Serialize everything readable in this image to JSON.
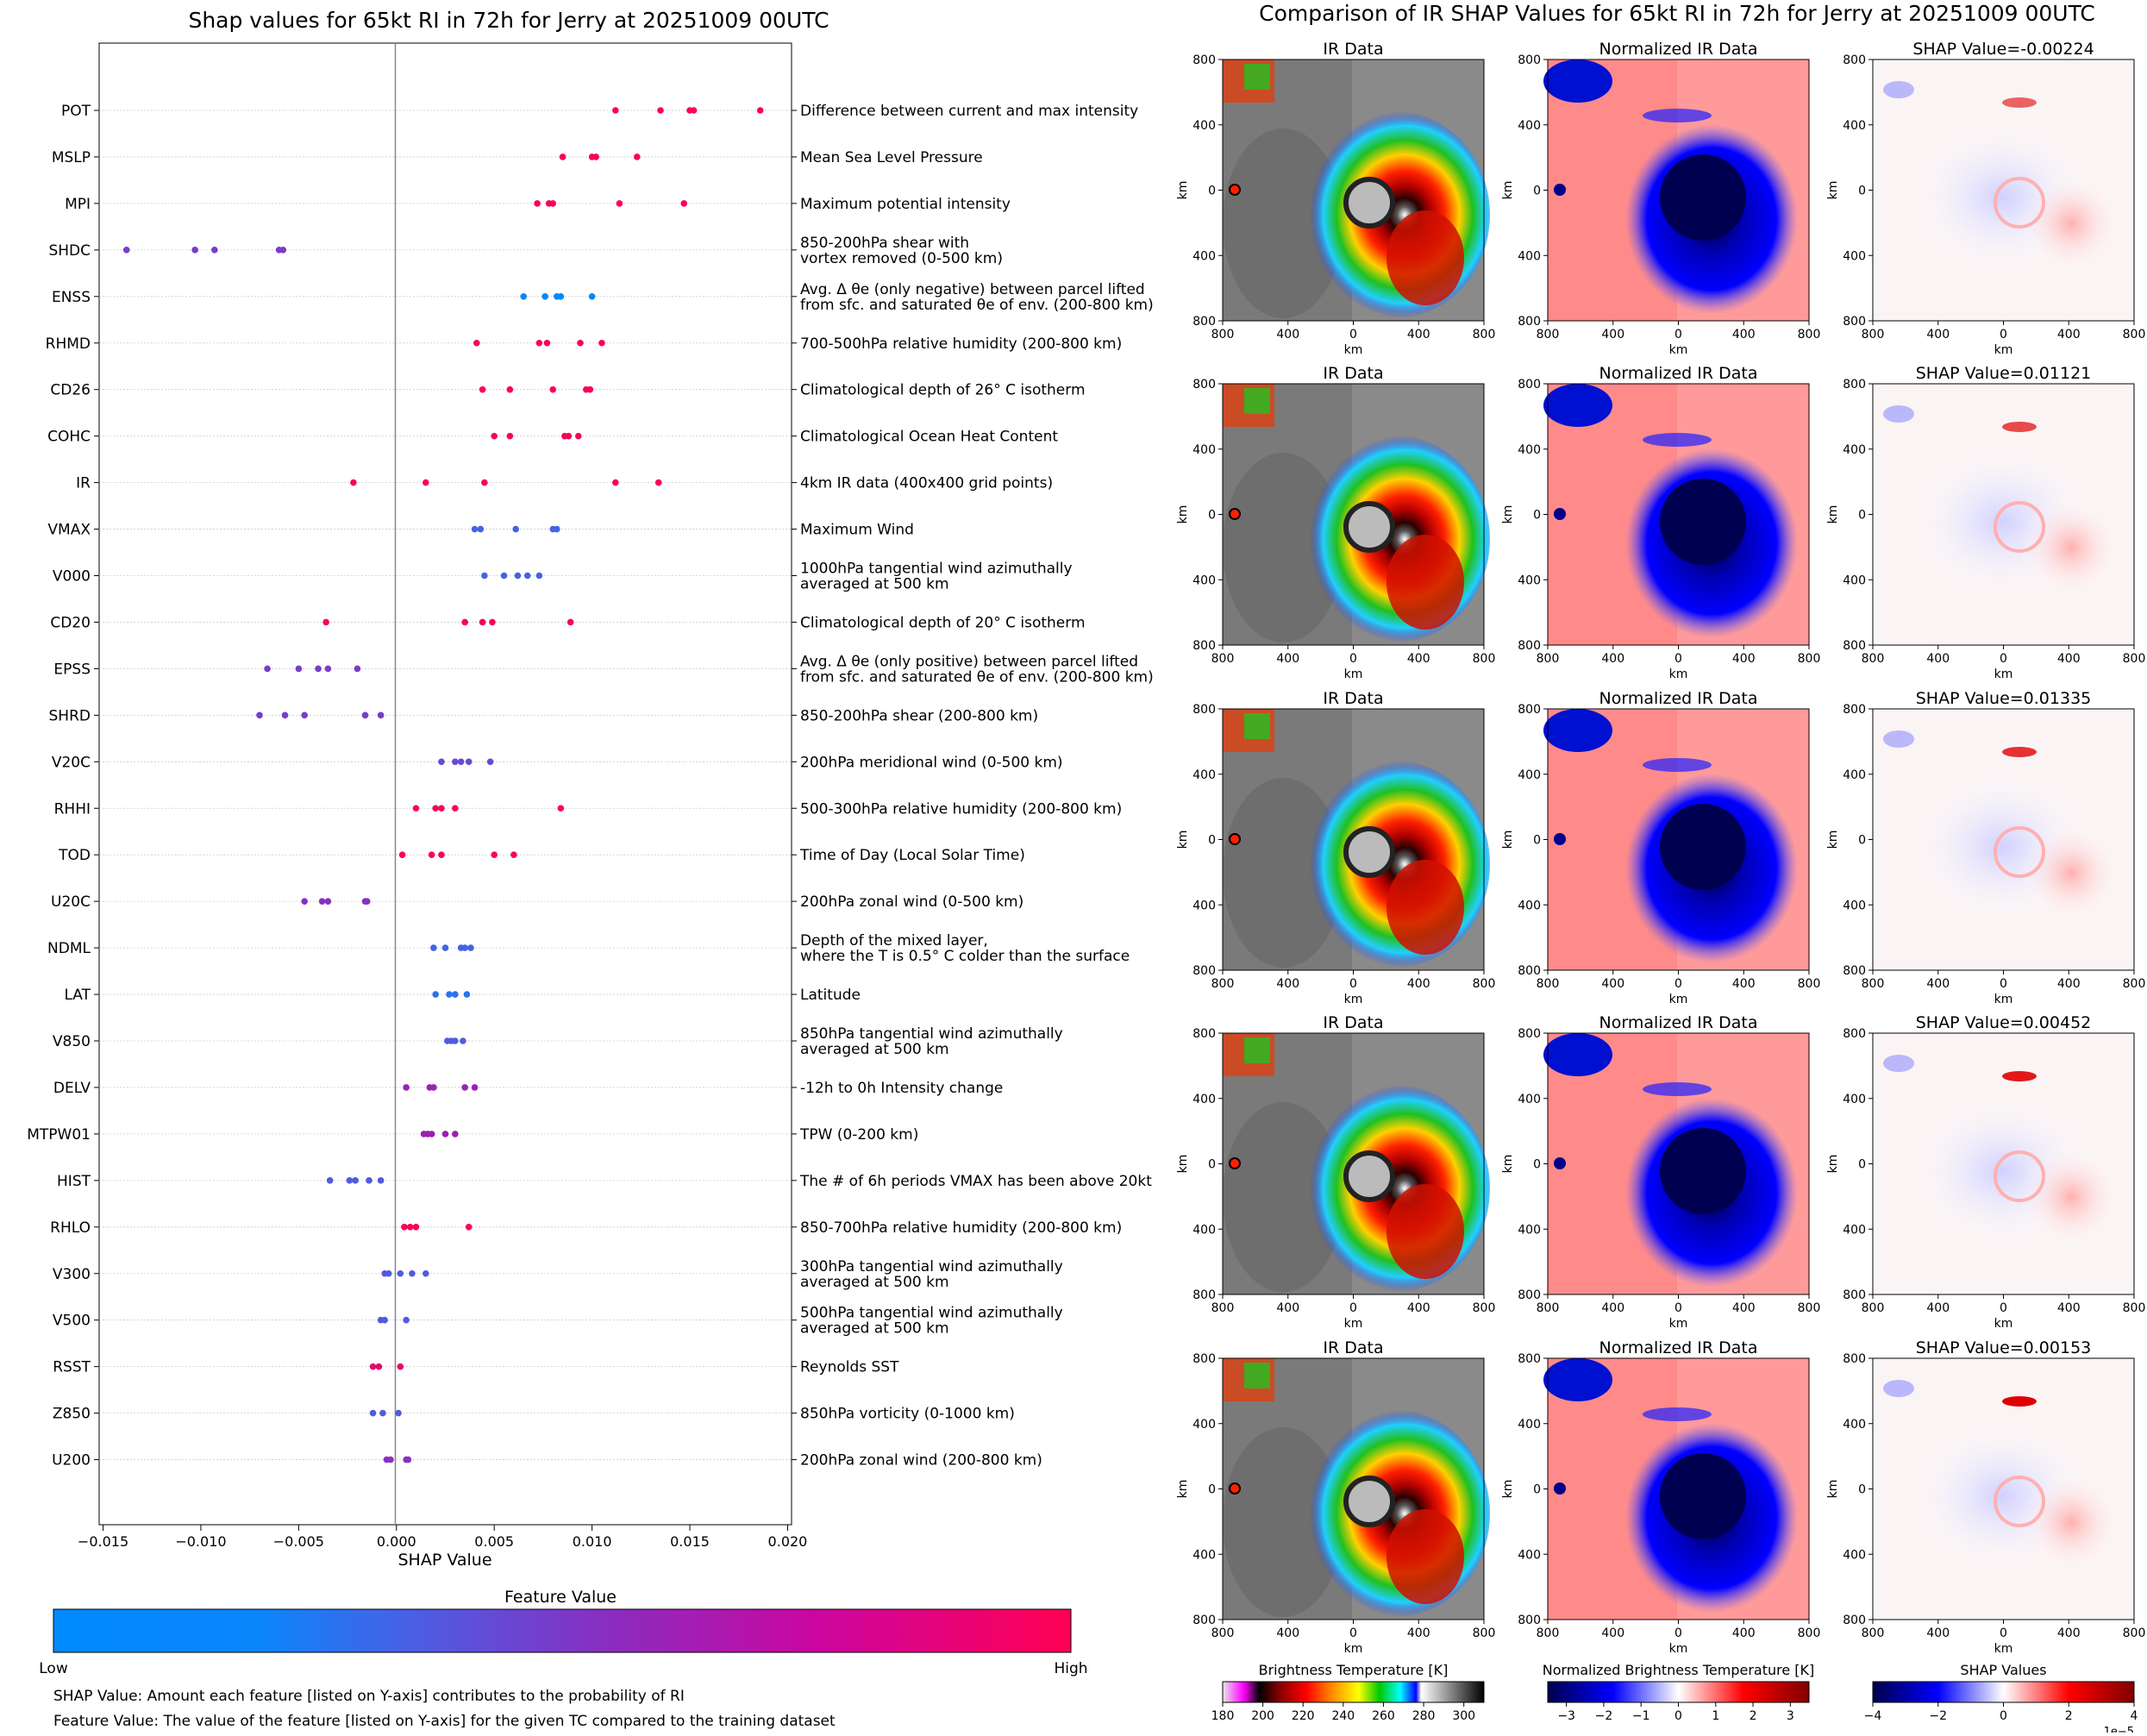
{
  "left": {
    "title": "Shap values for 65kt RI in 72h for Jerry at 20251009 00UTC",
    "xlabel": "SHAP Value",
    "colorbar": {
      "title": "Feature Value",
      "low": "Low",
      "high": "High",
      "colors": [
        "#008afd",
        "#5a56dc",
        "#a21bb0",
        "#ff0052"
      ]
    },
    "notes": [
      "SHAP Value: Amount each feature [listed on Y-axis] contributes to the probability of RI",
      "Feature Value: The value of the feature [listed on Y-axis] for the given TC compared to the training dataset"
    ]
  },
  "right": {
    "title": "Comparison of IR SHAP Values for 65kt RI in 72h for Jerry at 20251009 00UTC",
    "col_titles": [
      "IR Data",
      "Normalized IR Data"
    ],
    "shap_titles": [
      "SHAP Value=-0.00224",
      "SHAP Value=0.01121",
      "SHAP Value=0.01335",
      "SHAP Value=0.00452",
      "SHAP Value=0.00153"
    ],
    "axis_ticks": [
      "800",
      "400",
      "0",
      "400",
      "800"
    ],
    "axis_unit": "km",
    "colorbars": [
      {
        "title": "Brightness Temperature [K]",
        "ticks": [
          "180",
          "200",
          "220",
          "240",
          "260",
          "280",
          "300"
        ],
        "range": [
          180,
          310
        ]
      },
      {
        "title": "Normalized Brightness Temperature [K]",
        "ticks": [
          "−3",
          "−2",
          "−1",
          "0",
          "1",
          "2",
          "3"
        ],
        "range": [
          -3.5,
          3.5
        ]
      },
      {
        "title": "SHAP Values",
        "ticks": [
          "−4",
          "−2",
          "0",
          "2",
          "4"
        ],
        "range": [
          -4,
          4
        ],
        "offset": "1e−5"
      }
    ]
  },
  "chart_data": {
    "type": "scatter",
    "title": "Shap values for 65kt RI in 72h for Jerry at 20251009 00UTC",
    "xlabel": "SHAP Value",
    "xlim": [
      -0.0152,
      0.0202
    ],
    "xticks": [
      -0.015,
      -0.01,
      -0.005,
      0.0,
      0.005,
      0.01,
      0.015,
      0.02
    ],
    "xtick_labels": [
      "−0.015",
      "−0.010",
      "−0.005",
      "0.000",
      "0.005",
      "0.010",
      "0.015",
      "0.020"
    ],
    "grid": false,
    "features": [
      {
        "name": "POT",
        "desc": [
          "Difference between current and max intensity"
        ],
        "fv": 1.0,
        "values": [
          0.0112,
          0.0135,
          0.015,
          0.0152,
          0.0186
        ]
      },
      {
        "name": "MSLP",
        "desc": [
          "Mean Sea Level Pressure"
        ],
        "fv": 0.98,
        "values": [
          0.0085,
          0.01,
          0.0102,
          0.0123
        ]
      },
      {
        "name": "MPI",
        "desc": [
          "Maximum potential intensity"
        ],
        "fv": 0.98,
        "values": [
          0.0072,
          0.0078,
          0.008,
          0.0114,
          0.0147
        ]
      },
      {
        "name": "SHDC",
        "desc": [
          "850-200hPa shear with",
          "vortex removed (0-500 km)"
        ],
        "fv": 0.48,
        "values": [
          -0.0138,
          -0.0103,
          -0.0093,
          -0.006,
          -0.0058
        ]
      },
      {
        "name": "ENSS",
        "desc": [
          "Avg. Δ θe (only negative) between parcel lifted",
          "from sfc. and saturated θe of env. (200-800 km)"
        ],
        "fv": 0.02,
        "values": [
          0.0065,
          0.0076,
          0.0082,
          0.0084,
          0.01
        ]
      },
      {
        "name": "RHMD",
        "desc": [
          "700-500hPa relative humidity (200-800 km)"
        ],
        "fv": 0.98,
        "values": [
          0.0041,
          0.0073,
          0.0077,
          0.0094,
          0.0105
        ]
      },
      {
        "name": "CD26",
        "desc": [
          "Climatological depth of 26° C isotherm"
        ],
        "fv": 0.98,
        "values": [
          0.0044,
          0.0058,
          0.008,
          0.0097,
          0.0099
        ]
      },
      {
        "name": "COHC",
        "desc": [
          "Climatological Ocean Heat Content"
        ],
        "fv": 0.98,
        "values": [
          0.005,
          0.0058,
          0.0086,
          0.0088,
          0.0093
        ]
      },
      {
        "name": "IR",
        "desc": [
          "4km IR data (400x400 grid points)"
        ],
        "fv": 0.98,
        "values": [
          -0.0022,
          0.0015,
          0.0045,
          0.0112,
          0.0134
        ]
      },
      {
        "name": "VMAX",
        "desc": [
          "Maximum Wind"
        ],
        "fv": 0.25,
        "values": [
          0.004,
          0.0043,
          0.0061,
          0.008,
          0.0082
        ]
      },
      {
        "name": "V000",
        "desc": [
          "1000hPa tangential wind azimuthally",
          "averaged at 500 km"
        ],
        "fv": 0.25,
        "values": [
          0.0045,
          0.0055,
          0.0062,
          0.0067,
          0.0073
        ]
      },
      {
        "name": "CD20",
        "desc": [
          "Climatological depth of 20° C isotherm"
        ],
        "fv": 0.98,
        "values": [
          -0.0036,
          0.0035,
          0.0044,
          0.0049,
          0.0089
        ]
      },
      {
        "name": "EPSS",
        "desc": [
          "Avg. Δ θe (only positive) between parcel lifted",
          "from sfc. and saturated θe of env. (200-800 km)"
        ],
        "fv": 0.48,
        "values": [
          -0.0066,
          -0.005,
          -0.004,
          -0.0035,
          -0.002
        ]
      },
      {
        "name": "SHRD",
        "desc": [
          "850-200hPa shear (200-800 km)"
        ],
        "fv": 0.48,
        "values": [
          -0.007,
          -0.0057,
          -0.0047,
          -0.0016,
          -0.0008
        ]
      },
      {
        "name": "V20C",
        "desc": [
          "200hPa meridional wind (0-500 km)"
        ],
        "fv": 0.4,
        "values": [
          0.0023,
          0.003,
          0.0033,
          0.0037,
          0.0048
        ]
      },
      {
        "name": "RHHI",
        "desc": [
          "500-300hPa relative humidity (200-800 km)"
        ],
        "fv": 0.98,
        "values": [
          0.001,
          0.002,
          0.0023,
          0.003,
          0.0084
        ]
      },
      {
        "name": "TOD",
        "desc": [
          "Time of Day (Local Solar Time)"
        ],
        "fv": 0.98,
        "values": [
          0.0003,
          0.0018,
          0.0023,
          0.005,
          0.006
        ]
      },
      {
        "name": "U20C",
        "desc": [
          "200hPa zonal wind (0-500 km)"
        ],
        "fv": 0.55,
        "values": [
          -0.0047,
          -0.0038,
          -0.0035,
          -0.0016,
          -0.0015
        ]
      },
      {
        "name": "NDML",
        "desc": [
          "Depth of the mixed layer,",
          "where the T is 0.5° C colder than the surface"
        ],
        "fv": 0.25,
        "values": [
          0.0019,
          0.0025,
          0.0033,
          0.0035,
          0.0038
        ]
      },
      {
        "name": "LAT",
        "desc": [
          "Latitude"
        ],
        "fv": 0.15,
        "values": [
          0.002,
          0.0027,
          0.003,
          0.0036
        ]
      },
      {
        "name": "V850",
        "desc": [
          "850hPa tangential wind azimuthally",
          "averaged at 500 km"
        ],
        "fv": 0.3,
        "values": [
          0.0026,
          0.0028,
          0.003,
          0.0034
        ]
      },
      {
        "name": "DELV",
        "desc": [
          "-12h to 0h Intensity change"
        ],
        "fv": 0.62,
        "values": [
          0.0005,
          0.0017,
          0.0019,
          0.0035,
          0.004
        ]
      },
      {
        "name": "MTPW01",
        "desc": [
          "TPW (0-200 km)"
        ],
        "fv": 0.65,
        "values": [
          0.0014,
          0.0016,
          0.0018,
          0.0025,
          0.003
        ]
      },
      {
        "name": "HIST",
        "desc": [
          "The # of 6h periods VMAX has been above 20kt"
        ],
        "fv": 0.3,
        "values": [
          -0.0034,
          -0.0024,
          -0.0021,
          -0.0014,
          -0.0008
        ]
      },
      {
        "name": "RHLO",
        "desc": [
          "850-700hPa relative humidity (200-800 km)"
        ],
        "fv": 0.98,
        "values": [
          0.0004,
          0.0007,
          0.001,
          0.0037
        ]
      },
      {
        "name": "V300",
        "desc": [
          "300hPa tangential wind azimuthally",
          "averaged at 500 km"
        ],
        "fv": 0.3,
        "values": [
          -0.0006,
          -0.0004,
          0.0002,
          0.0008,
          0.0015
        ]
      },
      {
        "name": "V500",
        "desc": [
          "500hPa tangential wind azimuthally",
          "averaged at 500 km"
        ],
        "fv": 0.3,
        "values": [
          -0.0008,
          -0.0006,
          0.0005
        ]
      },
      {
        "name": "RSST",
        "desc": [
          "Reynolds SST"
        ],
        "fv": 0.9,
        "values": [
          -0.0012,
          -0.0009,
          0.0002
        ]
      },
      {
        "name": "Z850",
        "desc": [
          "850hPa vorticity (0-1000 km)"
        ],
        "fv": 0.3,
        "values": [
          -0.0012,
          -0.0007,
          0.0001
        ]
      },
      {
        "name": "U200",
        "desc": [
          "200hPa zonal wind (200-800 km)"
        ],
        "fv": 0.55,
        "values": [
          -0.0005,
          -0.0003,
          0.0005,
          0.0006
        ]
      }
    ]
  }
}
